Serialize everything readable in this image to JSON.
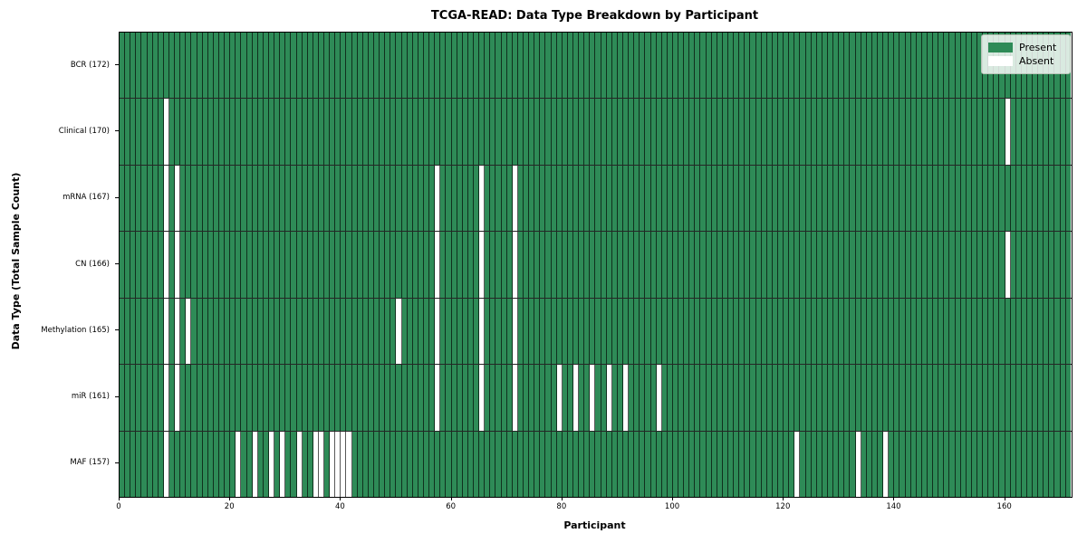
{
  "figure": {
    "title": "TCGA-READ: Data Type Breakdown by Participant",
    "xlabel": "Participant",
    "ylabel": "Data Type (Total Sample Count)"
  },
  "legend": {
    "items": [
      {
        "label": "Present",
        "color": "#2e8b57"
      },
      {
        "label": "Absent",
        "color": "#ffffff"
      }
    ]
  },
  "chart_data": {
    "type": "heatmap",
    "title": "TCGA-READ: Data Type Breakdown by Participant",
    "xlabel": "Participant",
    "ylabel": "Data Type (Total Sample Count)",
    "x_range": [
      0,
      172
    ],
    "n_participants": 172,
    "x_ticks": [
      0,
      20,
      40,
      60,
      80,
      100,
      120,
      140,
      160
    ],
    "present_color": "#2e8b57",
    "absent_color": "#ffffff",
    "grid_on": true,
    "legend_position": "upper right",
    "rows": [
      {
        "label": "BCR (172)",
        "data_type": "BCR",
        "present_count": 172,
        "absent_participants": []
      },
      {
        "label": "Clinical (170)",
        "data_type": "Clinical",
        "present_count": 170,
        "absent_participants": [
          8,
          160
        ]
      },
      {
        "label": "mRNA (167)",
        "data_type": "mRNA",
        "present_count": 167,
        "absent_participants": [
          8,
          10,
          57,
          65,
          71
        ]
      },
      {
        "label": "CN (166)",
        "data_type": "CN",
        "present_count": 166,
        "absent_participants": [
          8,
          10,
          57,
          65,
          71,
          160
        ]
      },
      {
        "label": "Methylation (165)",
        "data_type": "Methylation",
        "present_count": 165,
        "absent_participants": [
          8,
          10,
          12,
          50,
          57,
          65,
          71
        ]
      },
      {
        "label": "miR (161)",
        "data_type": "miR",
        "present_count": 161,
        "absent_participants": [
          8,
          10,
          57,
          65,
          71,
          79,
          82,
          85,
          88,
          91,
          97
        ]
      },
      {
        "label": "MAF (157)",
        "data_type": "MAF",
        "present_count": 157,
        "absent_participants": [
          8,
          21,
          24,
          27,
          29,
          32,
          35,
          36,
          38,
          39,
          40,
          41,
          122,
          133,
          138
        ]
      }
    ]
  }
}
